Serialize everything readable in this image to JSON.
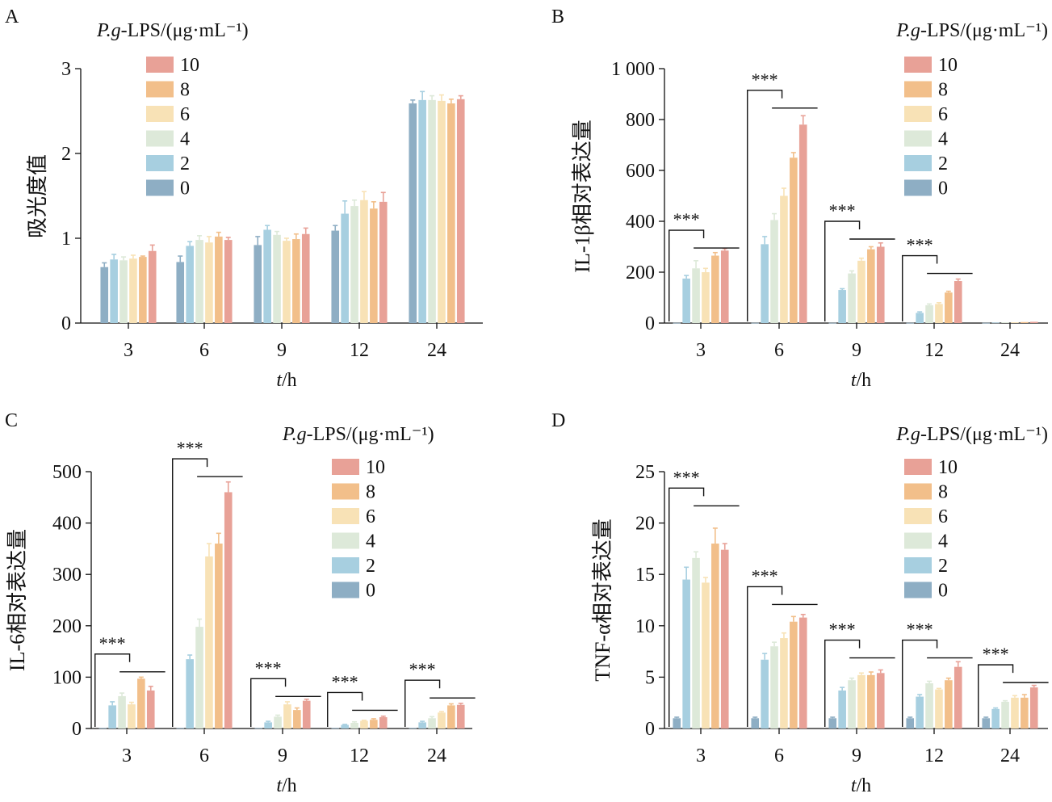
{
  "legend": {
    "title_prefix": "P.g",
    "title_suffix": "-LPS/(μg·mL⁻¹)",
    "labels": [
      "10",
      "8",
      "6",
      "4",
      "2",
      "0"
    ]
  },
  "colors": {
    "0": "#8eaec4",
    "2": "#a7cfe0",
    "4": "#dde9d9",
    "6": "#f8e2b6",
    "8": "#f2bf8a",
    "10": "#e8a197"
  },
  "significance_label": "***",
  "chart_data": [
    {
      "panel": "A",
      "type": "bar",
      "ylabel": "吸光度值",
      "xlabel_italic": "t",
      "xlabel_unit": "/h",
      "ylim": [
        0,
        3
      ],
      "yticks": [
        "0",
        "1",
        "2",
        "3"
      ],
      "ytick_values": [
        0,
        1,
        2,
        3
      ],
      "categories": [
        "3",
        "6",
        "9",
        "12",
        "24"
      ],
      "series": [
        {
          "name": "0",
          "values": [
            0.66,
            0.72,
            0.92,
            1.09,
            2.59
          ],
          "errors": [
            0.05,
            0.07,
            0.1,
            0.06,
            0.04
          ]
        },
        {
          "name": "2",
          "values": [
            0.75,
            0.91,
            1.1,
            1.29,
            2.63
          ],
          "errors": [
            0.06,
            0.05,
            0.05,
            0.15,
            0.1
          ]
        },
        {
          "name": "4",
          "values": [
            0.74,
            0.98,
            1.04,
            1.38,
            2.63
          ],
          "errors": [
            0.04,
            0.05,
            0.04,
            0.07,
            0.05
          ]
        },
        {
          "name": "6",
          "values": [
            0.76,
            0.95,
            0.97,
            1.45,
            2.62
          ],
          "errors": [
            0.04,
            0.07,
            0.03,
            0.1,
            0.07
          ]
        },
        {
          "name": "8",
          "values": [
            0.78,
            1.02,
            0.99,
            1.35,
            2.59
          ],
          "errors": [
            0.01,
            0.05,
            0.06,
            0.08,
            0.05
          ]
        },
        {
          "name": "10",
          "values": [
            0.85,
            0.98,
            1.05,
            1.43,
            2.64
          ],
          "errors": [
            0.07,
            0.03,
            0.07,
            0.11,
            0.04
          ]
        }
      ],
      "significance": []
    },
    {
      "panel": "B",
      "type": "bar",
      "ylabel": "IL-1β相对表达量",
      "xlabel_italic": "t",
      "xlabel_unit": "/h",
      "ylim": [
        0,
        1000
      ],
      "yticks": [
        "0",
        "200",
        "400",
        "600",
        "800",
        "1 000"
      ],
      "ytick_values": [
        0,
        200,
        400,
        600,
        800,
        1000
      ],
      "categories": [
        "3",
        "6",
        "9",
        "12",
        "24"
      ],
      "series": [
        {
          "name": "0",
          "values": [
            1,
            1,
            1,
            1,
            1
          ],
          "errors": [
            0,
            0,
            0,
            0,
            0
          ]
        },
        {
          "name": "2",
          "values": [
            175,
            310,
            130,
            40,
            2
          ],
          "errors": [
            12,
            30,
            5,
            4,
            0
          ]
        },
        {
          "name": "4",
          "values": [
            215,
            405,
            195,
            70,
            3
          ],
          "errors": [
            30,
            25,
            10,
            5,
            0
          ]
        },
        {
          "name": "6",
          "values": [
            200,
            500,
            245,
            75,
            3
          ],
          "errors": [
            15,
            30,
            10,
            5,
            0
          ]
        },
        {
          "name": "8",
          "values": [
            265,
            650,
            290,
            120,
            4
          ],
          "errors": [
            12,
            20,
            10,
            5,
            0
          ]
        },
        {
          "name": "10",
          "values": [
            285,
            780,
            300,
            165,
            5
          ],
          "errors": [
            8,
            35,
            15,
            8,
            0
          ]
        }
      ],
      "significance": [
        {
          "category": "3",
          "top": 365
        },
        {
          "category": "6",
          "top": 915
        },
        {
          "category": "9",
          "top": 400
        },
        {
          "category": "12",
          "top": 265
        }
      ]
    },
    {
      "panel": "C",
      "type": "bar",
      "ylabel": "IL-6相对表达量",
      "xlabel_italic": "t",
      "xlabel_unit": "/h",
      "ylim": [
        0,
        500
      ],
      "yticks": [
        "0",
        "100",
        "200",
        "300",
        "400",
        "500"
      ],
      "ytick_values": [
        0,
        100,
        200,
        300,
        400,
        500
      ],
      "categories": [
        "3",
        "6",
        "9",
        "12",
        "24"
      ],
      "series": [
        {
          "name": "0",
          "values": [
            1,
            1,
            1,
            1,
            1
          ],
          "errors": [
            0,
            0,
            0,
            0,
            0
          ]
        },
        {
          "name": "2",
          "values": [
            45,
            135,
            12,
            7,
            12
          ],
          "errors": [
            7,
            8,
            2,
            1,
            2
          ]
        },
        {
          "name": "4",
          "values": [
            63,
            198,
            23,
            11,
            20
          ],
          "errors": [
            6,
            15,
            3,
            2,
            3
          ]
        },
        {
          "name": "6",
          "values": [
            47,
            335,
            47,
            15,
            31
          ],
          "errors": [
            4,
            25,
            5,
            1,
            2
          ]
        },
        {
          "name": "8",
          "values": [
            97,
            360,
            36,
            17,
            45
          ],
          "errors": [
            3,
            20,
            4,
            2,
            3
          ]
        },
        {
          "name": "10",
          "values": [
            74,
            460,
            54,
            22,
            46
          ],
          "errors": [
            8,
            20,
            3,
            2,
            3
          ]
        }
      ],
      "significance": [
        {
          "category": "3",
          "top": 145
        },
        {
          "category": "6",
          "top": 525
        },
        {
          "category": "9",
          "top": 97
        },
        {
          "category": "12",
          "top": 70
        },
        {
          "category": "24",
          "top": 94
        }
      ]
    },
    {
      "panel": "D",
      "type": "bar",
      "ylabel": "TNF-α相对表达量",
      "xlabel_italic": "t",
      "xlabel_unit": "/h",
      "ylim": [
        0,
        25
      ],
      "yticks": [
        "0",
        "5",
        "10",
        "15",
        "20",
        "25"
      ],
      "ytick_values": [
        0,
        5,
        10,
        15,
        20,
        25
      ],
      "categories": [
        "3",
        "6",
        "9",
        "12",
        "24"
      ],
      "series": [
        {
          "name": "0",
          "values": [
            1,
            1,
            1,
            1,
            1
          ],
          "errors": [
            0.1,
            0.1,
            0.1,
            0.1,
            0.1
          ]
        },
        {
          "name": "2",
          "values": [
            14.5,
            6.7,
            3.7,
            3.1,
            1.9
          ],
          "errors": [
            1.2,
            0.6,
            0.3,
            0.2,
            0.1
          ]
        },
        {
          "name": "4",
          "values": [
            16.6,
            8.0,
            4.7,
            4.4,
            2.6
          ],
          "errors": [
            0.6,
            0.4,
            0.2,
            0.2,
            0.1
          ]
        },
        {
          "name": "6",
          "values": [
            14.2,
            8.8,
            5.2,
            3.8,
            3.0
          ],
          "errors": [
            0.5,
            0.5,
            0.2,
            0.1,
            0.2
          ]
        },
        {
          "name": "8",
          "values": [
            18.0,
            10.4,
            5.2,
            4.7,
            3.0
          ],
          "errors": [
            1.5,
            0.5,
            0.3,
            0.2,
            0.3
          ]
        },
        {
          "name": "10",
          "values": [
            17.4,
            10.8,
            5.4,
            6.0,
            4.0
          ],
          "errors": [
            0.6,
            0.3,
            0.3,
            0.5,
            0.2
          ]
        }
      ],
      "significance": [
        {
          "category": "3",
          "top": 23.4
        },
        {
          "category": "6",
          "top": 13.8
        },
        {
          "category": "9",
          "top": 8.6
        },
        {
          "category": "12",
          "top": 8.6
        },
        {
          "category": "24",
          "top": 6.2
        }
      ]
    }
  ]
}
